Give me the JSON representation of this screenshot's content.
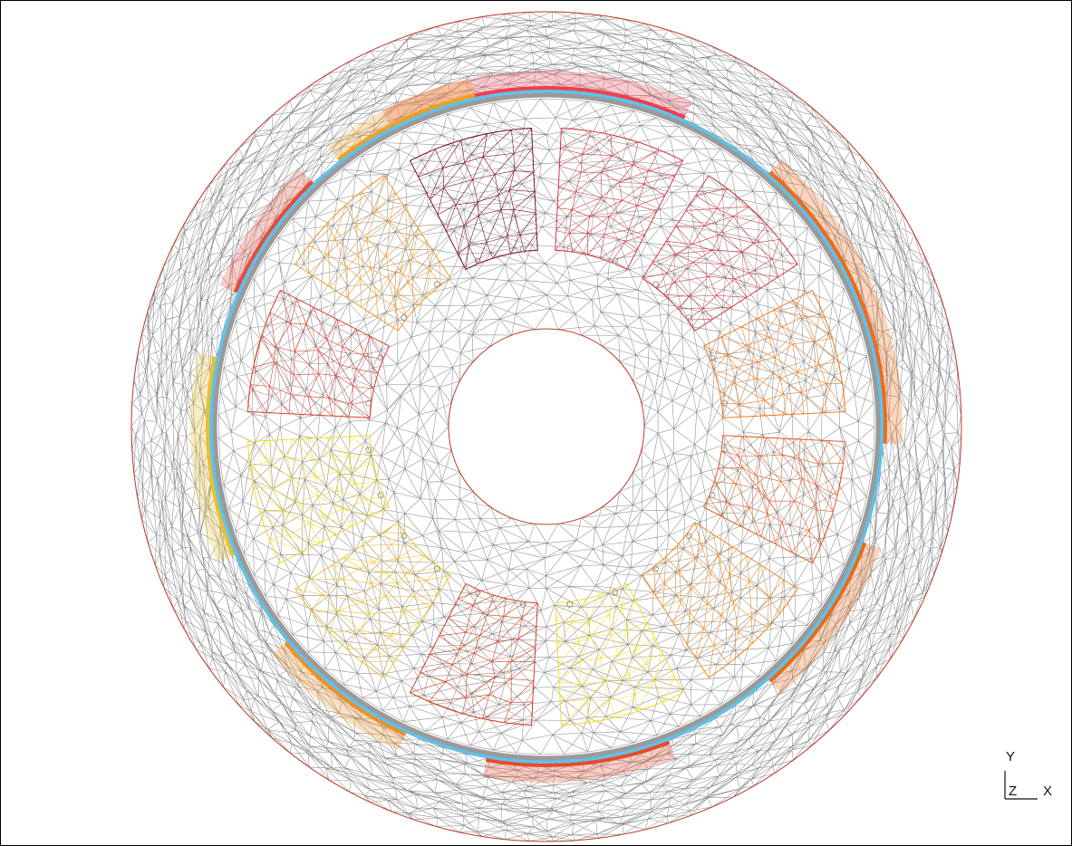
{
  "viewer": {
    "axes": {
      "y_label": "Y",
      "z_label": "Z",
      "x_label": "X"
    }
  },
  "model": {
    "mesh_line_color": "#8a8a8a",
    "boundary_color": "#c0392b",
    "airgap_color": "#5fc2ea",
    "airgap_core_color": "#9a9a9a",
    "slot_count": 12,
    "winding_colors": [
      "#d2343e",
      "#d2343e",
      "#ef7a1a",
      "#e35a1e",
      "#ef8a1a",
      "#f0e01e",
      "#cc3a1e",
      "#f0c021",
      "#f0e01e",
      "#d93d2a",
      "#ef9a1a",
      "#7a0a22"
    ],
    "magnet_colors": [
      "#ef3f4e",
      "#ef6a1a",
      "#e86a18",
      "#e84a2a",
      "#f09020",
      "#e8c030",
      "#e84a3a",
      "#f0a020",
      "#7a0a22"
    ]
  }
}
